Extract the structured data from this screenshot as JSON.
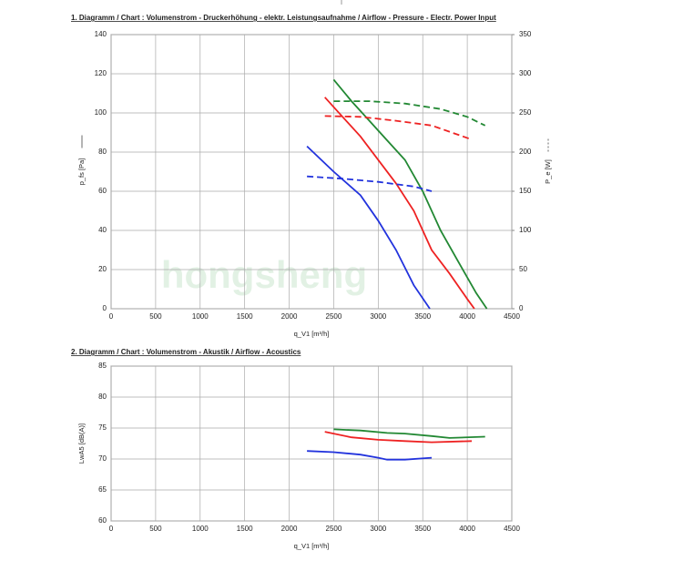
{
  "watermark": "hongsheng",
  "chart_data": [
    {
      "type": "line",
      "title": "1. Diagramm / Chart :   Volumenstrom - Druckerhöhung - elektr. Leistungsaufnahme / Airflow - Pressure - Electr. Power Input",
      "x_label": "q_V1 [m³/h]",
      "y_label": "p_fs [Pa]",
      "y2_label": "P_e [W]",
      "xlim": [
        0,
        4500
      ],
      "xticks": [
        0,
        500,
        1000,
        1500,
        2000,
        2500,
        3000,
        3500,
        4000,
        4500
      ],
      "ylim": [
        0,
        140
      ],
      "yticks": [
        0,
        20,
        40,
        60,
        80,
        100,
        120,
        140
      ],
      "y2lim": [
        0,
        350
      ],
      "y2ticks": [
        0,
        50,
        100,
        150,
        200,
        250,
        300,
        350
      ],
      "grid": true,
      "series": [
        {
          "color": "#2233dd",
          "style": "solid",
          "x": [
            2200,
            2500,
            2800,
            3000,
            3200,
            3400,
            3580
          ],
          "values": [
            83,
            70,
            58,
            45,
            30,
            12,
            0
          ]
        },
        {
          "color": "#ee2222",
          "style": "solid",
          "x": [
            2400,
            2600,
            2800,
            3000,
            3200,
            3400,
            3600,
            3800,
            4000,
            4080
          ],
          "values": [
            108,
            98,
            88,
            76,
            64,
            50,
            30,
            18,
            5,
            0
          ]
        },
        {
          "color": "#228833",
          "style": "solid",
          "x": [
            2500,
            2700,
            2900,
            3100,
            3300,
            3500,
            3700,
            3900,
            4100,
            4220
          ],
          "values": [
            117,
            106,
            96,
            86,
            76,
            60,
            40,
            24,
            8,
            0
          ]
        },
        {
          "color": "#2233dd",
          "style": "dashed",
          "axis": "y2",
          "x": [
            2200,
            2600,
            3000,
            3400,
            3600
          ],
          "values": [
            169,
            166,
            162,
            156,
            150
          ]
        },
        {
          "color": "#ee2222",
          "style": "dashed",
          "axis": "y2",
          "x": [
            2400,
            2800,
            3200,
            3600,
            4050
          ],
          "values": [
            246,
            245,
            240,
            234,
            216
          ]
        },
        {
          "color": "#228833",
          "style": "dashed",
          "axis": "y2",
          "x": [
            2500,
            2900,
            3300,
            3700,
            4000,
            4200
          ],
          "values": [
            265,
            265,
            262,
            255,
            245,
            234
          ]
        }
      ]
    },
    {
      "type": "line",
      "title": "2. Diagramm / Chart :   Volumenstrom - Akustik / Airflow - Acoustics",
      "x_label": "q_V1 [m³/h]",
      "y_label": "LwA5 [dB(A)]",
      "xlim": [
        0,
        4500
      ],
      "xticks": [
        0,
        500,
        1000,
        1500,
        2000,
        2500,
        3000,
        3500,
        4000,
        4500
      ],
      "ylim": [
        60,
        85
      ],
      "yticks": [
        60,
        65,
        70,
        75,
        80,
        85
      ],
      "grid": true,
      "series": [
        {
          "color": "#2233dd",
          "style": "solid",
          "x": [
            2200,
            2500,
            2800,
            3000,
            3100,
            3300,
            3600
          ],
          "values": [
            71.3,
            71.1,
            70.7,
            70.2,
            69.9,
            69.9,
            70.2
          ]
        },
        {
          "color": "#ee2222",
          "style": "solid",
          "x": [
            2400,
            2700,
            3000,
            3300,
            3600,
            4050
          ],
          "values": [
            74.4,
            73.5,
            73.1,
            72.9,
            72.7,
            72.9
          ]
        },
        {
          "color": "#228833",
          "style": "solid",
          "x": [
            2500,
            2800,
            3100,
            3300,
            3600,
            3800,
            4200
          ],
          "values": [
            74.8,
            74.6,
            74.2,
            74.1,
            73.7,
            73.4,
            73.6
          ]
        }
      ]
    }
  ]
}
